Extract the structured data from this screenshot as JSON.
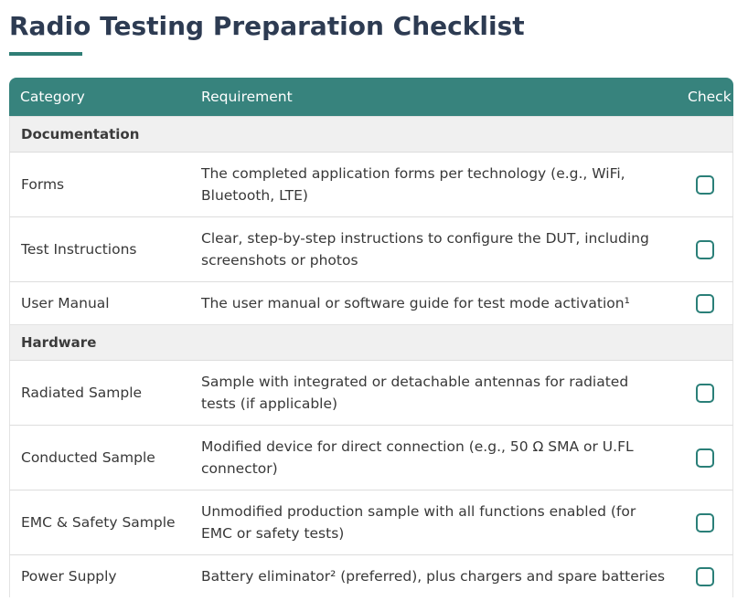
{
  "page": {
    "title": "Radio Testing Preparation Checklist"
  },
  "colors": {
    "title_navy": "#2d3b52",
    "header_teal": "#37837d",
    "underline_teal": "#2f7e76",
    "checkbox_teal": "#2a7f78",
    "section_gray": "#f0f0f0"
  },
  "table": {
    "columns": [
      {
        "label": "Category"
      },
      {
        "label": "Requirement"
      },
      {
        "label": "Check"
      }
    ],
    "rows": [
      {
        "type": "section",
        "label": "Documentation"
      },
      {
        "type": "item",
        "category": "Forms",
        "requirement": "The completed application forms per technology (e.g., WiFi, Bluetooth, LTE)",
        "checked": false
      },
      {
        "type": "item",
        "category": "Test Instructions",
        "requirement": "Clear, step-by-step instructions to configure the DUT, includ­ing screenshots or photos",
        "checked": false
      },
      {
        "type": "item",
        "category": "User Manual",
        "requirement": "The user manual or software guide for test mode activation¹",
        "checked": false
      },
      {
        "type": "section",
        "label": "Hardware"
      },
      {
        "type": "item",
        "category": "Radiated Sample",
        "requirement": "Sample with integrated or detachable antennas for radiated tests (if applicable)",
        "checked": false
      },
      {
        "type": "item",
        "category": "Conducted Sample",
        "requirement": "Modified device for direct connection (e.g., 50 Ω SMA or U.FL connector)",
        "checked": false
      },
      {
        "type": "item",
        "category": "EMC & Safety Sample",
        "requirement": "Unmodified production sample with all functions enabled (for EMC or safety tests)",
        "checked": false
      },
      {
        "type": "item",
        "category": "Power Supply",
        "requirement": "Battery eliminator² (preferred), plus chargers and spare batteries",
        "checked": false
      }
    ]
  }
}
